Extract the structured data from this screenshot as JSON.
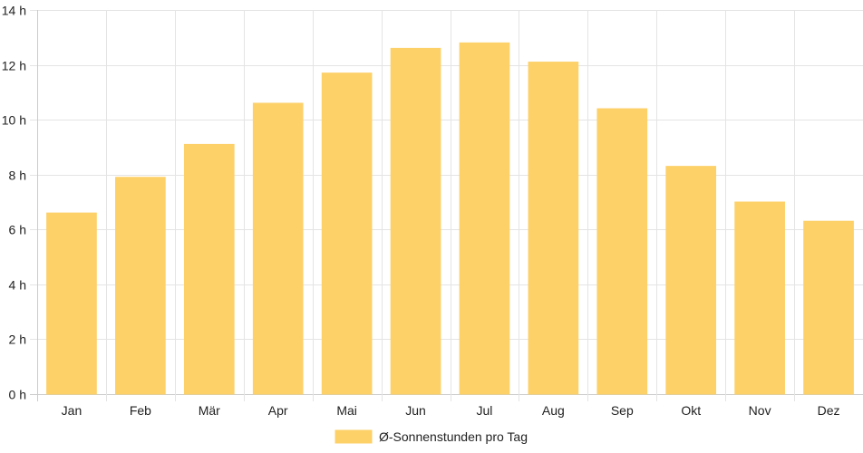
{
  "chart_data": {
    "type": "bar",
    "categories": [
      "Jan",
      "Feb",
      "Mär",
      "Apr",
      "Mai",
      "Jun",
      "Jul",
      "Aug",
      "Sep",
      "Okt",
      "Nov",
      "Dez"
    ],
    "series": [
      {
        "name": "Ø-Sonnenstunden pro Tag",
        "values": [
          6.6,
          7.9,
          9.1,
          10.6,
          11.7,
          12.6,
          12.8,
          12.1,
          10.4,
          8.3,
          7.0,
          6.3
        ]
      }
    ],
    "y_ticks": [
      "0 h",
      "2 h",
      "4 h",
      "6 h",
      "8 h",
      "10 h",
      "12 h",
      "14 h"
    ],
    "ylim": [
      0,
      14
    ],
    "grid": true,
    "legend_position": "bottom-center",
    "colors": {
      "bar_fill": "#fdd068",
      "bar_stroke": "#fdd068",
      "grid": "#e4e4e4",
      "axis": "#cccccc"
    }
  }
}
